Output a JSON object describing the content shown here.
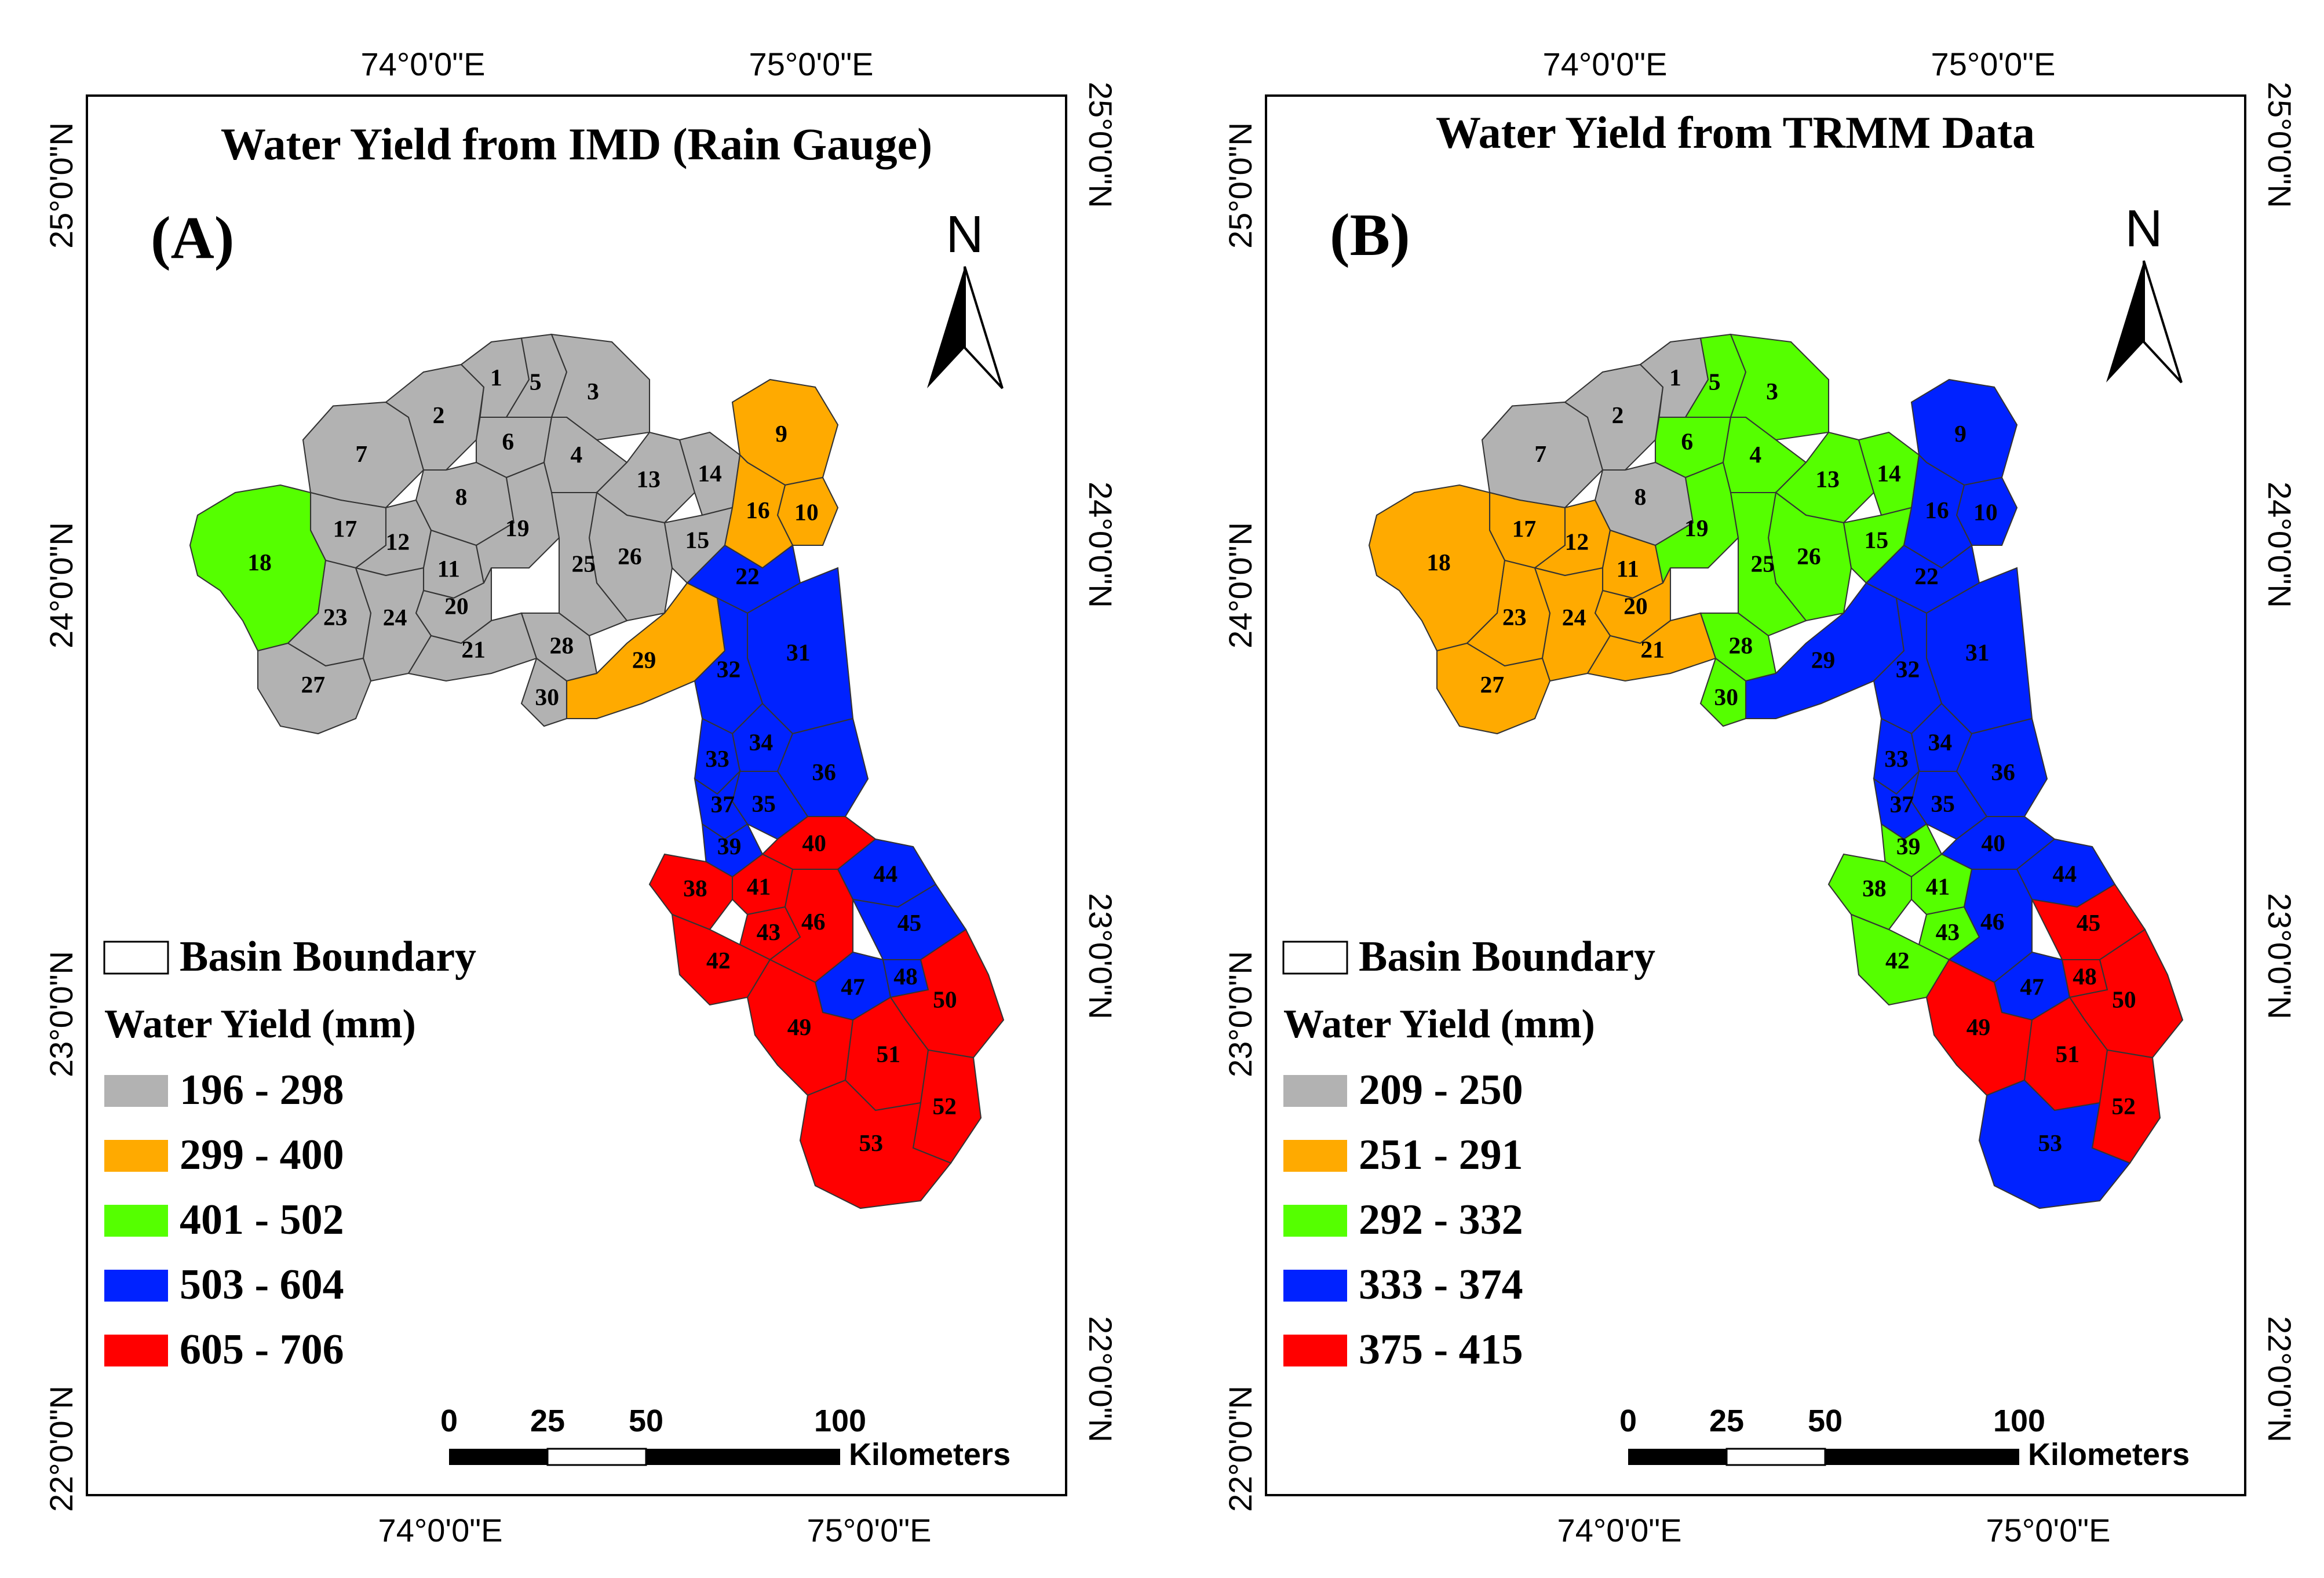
{
  "map_a": {
    "title": "Water Yield from IMD (Rain Gauge)",
    "panel_label": "(A)",
    "north": "N",
    "top_lon_labels": [
      "74°0'0\"E",
      "75°0'0\"E"
    ],
    "bottom_lon_labels": [
      "74°0'0\"E",
      "75°0'0\"E"
    ],
    "left_lat_labels": [
      "25°0'0\"N",
      "24°0'0\"N",
      "23°0'0\"N",
      "22°0'0\"N"
    ],
    "right_lat_labels": [
      "25°0'0\"N",
      "24°0'0\"N",
      "23°0'0\"N",
      "22°0'0\"N"
    ],
    "legend": {
      "boundary_label": "Basin Boundary",
      "heading": "Water Yield (mm)",
      "classes": [
        {
          "label": "196 - 298",
          "color": "#b2b2b2"
        },
        {
          "label": "299 - 400",
          "color": "#ffaa00"
        },
        {
          "label": "401 - 502",
          "color": "#55ff00"
        },
        {
          "label": "503 - 604",
          "color": "#0022ff"
        },
        {
          "label": "605 - 706",
          "color": "#ff0000"
        }
      ]
    },
    "scale": {
      "ticks": [
        "0",
        "25",
        "50",
        "100"
      ],
      "unit": "Kilometers"
    },
    "subbasin_classes": {
      "1": 0,
      "2": 0,
      "3": 0,
      "4": 0,
      "5": 0,
      "6": 0,
      "7": 0,
      "8": 0,
      "11": 0,
      "12": 0,
      "13": 0,
      "14": 0,
      "15": 0,
      "17": 0,
      "19": 0,
      "20": 0,
      "21": 0,
      "23": 0,
      "24": 0,
      "25": 0,
      "26": 0,
      "27": 0,
      "28": 0,
      "30": 0,
      "9": 1,
      "10": 1,
      "16": 1,
      "29": 1,
      "18": 2,
      "22": 3,
      "31": 3,
      "32": 3,
      "33": 3,
      "34": 3,
      "35": 3,
      "36": 3,
      "37": 3,
      "39": 3,
      "44": 3,
      "45": 3,
      "47": 3,
      "48": 3,
      "38": 4,
      "40": 4,
      "41": 4,
      "42": 4,
      "43": 4,
      "46": 4,
      "49": 4,
      "50": 4,
      "51": 4,
      "52": 4,
      "53": 4
    }
  },
  "map_b": {
    "title": "Water Yield from TRMM Data",
    "panel_label": "(B)",
    "north": "N",
    "top_lon_labels": [
      "74°0'0\"E",
      "75°0'0\"E"
    ],
    "bottom_lon_labels": [
      "74°0'0\"E",
      "75°0'0\"E"
    ],
    "left_lat_labels": [
      "25°0'0\"N",
      "24°0'0\"N",
      "23°0'0\"N",
      "22°0'0\"N"
    ],
    "right_lat_labels": [
      "25°0'0\"N",
      "24°0'0\"N",
      "23°0'0\"N",
      "22°0'0\"N"
    ],
    "legend": {
      "boundary_label": "Basin Boundary",
      "heading": "Water Yield (mm)",
      "classes": [
        {
          "label": "209 - 250",
          "color": "#b2b2b2"
        },
        {
          "label": "251 - 291",
          "color": "#ffaa00"
        },
        {
          "label": "292 - 332",
          "color": "#55ff00"
        },
        {
          "label": "333 - 374",
          "color": "#0022ff"
        },
        {
          "label": "375 - 415",
          "color": "#ff0000"
        }
      ]
    },
    "scale": {
      "ticks": [
        "0",
        "25",
        "50",
        "100"
      ],
      "unit": "Kilometers"
    },
    "subbasin_classes": {
      "1": 0,
      "2": 0,
      "7": 0,
      "8": 0,
      "11": 1,
      "12": 1,
      "17": 1,
      "18": 1,
      "20": 1,
      "21": 1,
      "23": 1,
      "24": 1,
      "27": 1,
      "3": 2,
      "4": 2,
      "5": 2,
      "6": 2,
      "13": 2,
      "14": 2,
      "15": 2,
      "19": 2,
      "25": 2,
      "26": 2,
      "28": 2,
      "30": 2,
      "38": 2,
      "39": 2,
      "41": 2,
      "42": 2,
      "43": 2,
      "9": 3,
      "10": 3,
      "16": 3,
      "22": 3,
      "29": 3,
      "31": 3,
      "32": 3,
      "33": 3,
      "34": 3,
      "35": 3,
      "36": 3,
      "37": 3,
      "40": 3,
      "44": 3,
      "46": 3,
      "47": 3,
      "53": 3,
      "45": 4,
      "48": 4,
      "49": 4,
      "50": 4,
      "51": 4,
      "52": 4
    }
  }
}
